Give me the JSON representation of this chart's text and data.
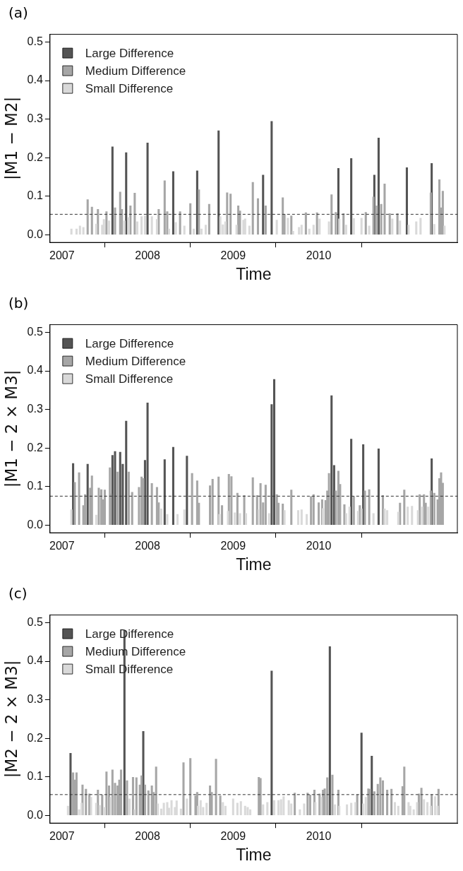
{
  "chart_data": [
    {
      "type": "bar",
      "title": "(a)",
      "xlabel": "Time",
      "ylabel": "|M1 − M2|",
      "xlim": [
        2006.86,
        2011.62
      ],
      "xticks": [
        2007,
        2008,
        2009,
        2010
      ],
      "ylim": [
        -0.02,
        0.52
      ],
      "yticks": [
        {
          "value": 0,
          "label": "0.0"
        },
        {
          "value": 0.1,
          "label": "0.1"
        },
        {
          "value": 0.2,
          "label": "0.2"
        },
        {
          "value": 0.3,
          "label": "0.3"
        },
        {
          "value": 0.4,
          "label": "0.4"
        },
        {
          "value": 0.5,
          "label": "0.5"
        }
      ],
      "grid": false,
      "legend": "top left",
      "ref_lines": [
        {
          "axis": "y",
          "value": 0.053,
          "color": "#333333",
          "line_style": "dashed"
        }
      ],
      "series": [
        {
          "name": "Large Difference",
          "color": "#545454",
          "x": [
            2007.59,
            2007.75,
            2008.0,
            2008.3,
            2008.58,
            2008.83,
            2009.35,
            2009.45,
            2010.23,
            2010.38,
            2010.65,
            2010.7,
            2011.03,
            2011.32
          ],
          "values": [
            0.228,
            0.213,
            0.238,
            0.164,
            0.166,
            0.27,
            0.155,
            0.294,
            0.172,
            0.198,
            0.155,
            0.251,
            0.174,
            0.185
          ]
        },
        {
          "name": "Medium Difference",
          "color": "#a6a6a6",
          "x": [
            2007.3,
            2007.35,
            2007.42,
            2007.52,
            2007.62,
            2007.68,
            2007.7,
            2007.8,
            2007.85,
            2008.13,
            2008.2,
            2008.23,
            2008.38,
            2008.5,
            2008.6,
            2008.72,
            2008.93,
            2008.97,
            2009.06,
            2009.08,
            2009.23,
            2009.29,
            2009.38,
            2009.58,
            2009.6,
            2009.68,
            2009.85,
            2009.98,
            2010.15,
            2010.2,
            2010.29,
            2010.55,
            2010.64,
            2010.68,
            2010.73,
            2010.77,
            2010.83,
            2010.92,
            2011.31,
            2011.41,
            2011.43,
            2011.45
          ],
          "values": [
            0.091,
            0.072,
            0.066,
            0.06,
            0.07,
            0.111,
            0.066,
            0.075,
            0.108,
            0.066,
            0.14,
            0.06,
            0.06,
            0.081,
            0.117,
            0.079,
            0.109,
            0.106,
            0.075,
            0.062,
            0.136,
            0.094,
            0.075,
            0.096,
            0.053,
            0.049,
            0.057,
            0.057,
            0.104,
            0.058,
            0.055,
            0.058,
            0.098,
            0.075,
            0.079,
            0.132,
            0.055,
            0.055,
            0.109,
            0.143,
            0.07,
            0.113
          ]
        },
        {
          "name": "Small Difference",
          "color": "#d9d9d9",
          "x": [
            2007.11,
            2007.17,
            2007.21,
            2007.25,
            2007.4,
            2007.47,
            2007.49,
            2007.55,
            2007.73,
            2007.78,
            2007.88,
            2007.93,
            2007.97,
            2008.05,
            2008.11,
            2008.25,
            2008.33,
            2008.43,
            2008.54,
            2008.63,
            2008.68,
            2008.85,
            2008.88,
            2008.91,
            2009.04,
            2009.12,
            2009.14,
            2009.19,
            2009.51,
            2009.64,
            2009.7,
            2009.77,
            2009.8,
            2009.89,
            2009.94,
            2010.01,
            2010.12,
            2010.24,
            2010.32,
            2010.41,
            2010.5,
            2010.59,
            2010.86,
            2010.95,
            2011.05,
            2011.14,
            2011.19,
            2011.35,
            2011.47
          ],
          "values": [
            0.015,
            0.015,
            0.023,
            0.019,
            0.028,
            0.025,
            0.04,
            0.036,
            0.036,
            0.045,
            0.034,
            0.047,
            0.049,
            0.047,
            0.04,
            0.015,
            0.032,
            0.023,
            0.015,
            0.015,
            0.025,
            0.047,
            0.026,
            0.034,
            0.025,
            0.038,
            0.041,
            0.023,
            0.038,
            0.043,
            0.009,
            0.019,
            0.025,
            0.015,
            0.025,
            0.041,
            0.034,
            0.041,
            0.025,
            0.042,
            0.043,
            0.023,
            0.041,
            0.036,
            0.025,
            0.034,
            0.043,
            0.027,
            0.023
          ]
        }
      ]
    },
    {
      "type": "bar",
      "title": "(b)",
      "xlabel": "Time",
      "ylabel": "|M1 − 2 × M3|",
      "xlim": [
        2006.86,
        2011.62
      ],
      "xticks": [
        2007,
        2008,
        2009,
        2010
      ],
      "ylim": [
        -0.02,
        0.52
      ],
      "yticks": [
        {
          "value": 0,
          "label": "0.0"
        },
        {
          "value": 0.1,
          "label": "0.1"
        },
        {
          "value": 0.2,
          "label": "0.2"
        },
        {
          "value": 0.3,
          "label": "0.3"
        },
        {
          "value": 0.4,
          "label": "0.4"
        },
        {
          "value": 0.5,
          "label": "0.5"
        }
      ],
      "grid": false,
      "legend": "top left",
      "ref_lines": [
        {
          "axis": "y",
          "value": 0.075,
          "color": "#333333",
          "line_style": "dashed"
        }
      ],
      "series": [
        {
          "name": "Large Difference",
          "color": "#545454",
          "x": [
            2007.13,
            2007.3,
            2007.59,
            2007.62,
            2007.68,
            2007.71,
            2007.75,
            2007.97,
            2008.0,
            2008.2,
            2008.3,
            2008.46,
            2009.45,
            2009.48,
            2010.15,
            2010.18,
            2010.38,
            2010.52,
            2010.7,
            2011.32
          ],
          "values": [
            0.16,
            0.158,
            0.181,
            0.191,
            0.189,
            0.158,
            0.27,
            0.168,
            0.317,
            0.17,
            0.202,
            0.179,
            0.313,
            0.378,
            0.336,
            0.155,
            0.223,
            0.209,
            0.198,
            0.172
          ]
        },
        {
          "name": "Medium Difference",
          "color": "#a6a6a6",
          "x": [
            2007.15,
            2007.2,
            2007.25,
            2007.27,
            2007.33,
            2007.35,
            2007.43,
            2007.46,
            2007.48,
            2007.5,
            2007.56,
            2007.57,
            2007.65,
            2007.78,
            2007.82,
            2007.9,
            2007.93,
            2007.95,
            2008.05,
            2008.11,
            2008.13,
            2008.52,
            2008.58,
            2008.6,
            2008.73,
            2008.76,
            2008.83,
            2008.87,
            2008.95,
            2008.98,
            2009.05,
            2009.13,
            2009.23,
            2009.28,
            2009.32,
            2009.35,
            2009.38,
            2009.51,
            2009.53,
            2009.58,
            2009.68,
            2009.91,
            2009.94,
            2010.0,
            2010.04,
            2010.08,
            2010.1,
            2010.12,
            2010.2,
            2010.23,
            2010.25,
            2010.3,
            2010.41,
            2010.48,
            2010.54,
            2010.59,
            2010.75,
            2010.95,
            2011.0,
            2011.18,
            2011.23,
            2011.25,
            2011.31,
            2011.35,
            2011.39,
            2011.41,
            2011.43,
            2011.45
          ],
          "values": [
            0.111,
            0.136,
            0.051,
            0.079,
            0.096,
            0.128,
            0.096,
            0.092,
            0.066,
            0.091,
            0.149,
            0.081,
            0.138,
            0.138,
            0.085,
            0.098,
            0.125,
            0.121,
            0.108,
            0.098,
            0.058,
            0.134,
            0.115,
            0.057,
            0.102,
            0.119,
            0.125,
            0.051,
            0.132,
            0.126,
            0.083,
            0.077,
            0.123,
            0.077,
            0.108,
            0.058,
            0.104,
            0.079,
            0.057,
            0.055,
            0.091,
            0.074,
            0.079,
            0.058,
            0.066,
            0.064,
            0.089,
            0.134,
            0.089,
            0.14,
            0.106,
            0.053,
            0.074,
            0.051,
            0.089,
            0.092,
            0.077,
            0.057,
            0.091,
            0.079,
            0.079,
            0.057,
            0.089,
            0.083,
            0.066,
            0.121,
            0.136,
            0.109
          ]
        },
        {
          "name": "Small Difference",
          "color": "#d9d9d9",
          "x": [
            2007.11,
            2007.4,
            2008.16,
            2008.23,
            2008.35,
            2008.43,
            2008.84,
            2008.94,
            2009.02,
            2009.08,
            2009.15,
            2009.3,
            2009.42,
            2009.6,
            2009.76,
            2009.8,
            2009.86,
            2010.05,
            2010.32,
            2010.36,
            2010.46,
            2010.5,
            2010.64,
            2010.77,
            2010.8,
            2010.93,
            2011.04,
            2011.09,
            2011.16,
            2011.21,
            2011.28
          ],
          "values": [
            0.04,
            0.026,
            0.042,
            0.028,
            0.028,
            0.04,
            0.028,
            0.036,
            0.032,
            0.03,
            0.03,
            0.04,
            0.03,
            0.038,
            0.038,
            0.04,
            0.028,
            0.043,
            0.03,
            0.047,
            0.036,
            0.042,
            0.03,
            0.042,
            0.038,
            0.034,
            0.047,
            0.049,
            0.038,
            0.047,
            0.047
          ]
        }
      ]
    },
    {
      "type": "bar",
      "title": "(c)",
      "xlabel": "Time",
      "ylabel": "|M2 − 2 × M3|",
      "xlim": [
        2006.86,
        2011.62
      ],
      "xticks": [
        2007,
        2008,
        2009,
        2010
      ],
      "ylim": [
        -0.02,
        0.52
      ],
      "yticks": [
        {
          "value": 0,
          "label": "0.0"
        },
        {
          "value": 0.1,
          "label": "0.1"
        },
        {
          "value": 0.2,
          "label": "0.2"
        },
        {
          "value": 0.3,
          "label": "0.3"
        },
        {
          "value": 0.4,
          "label": "0.4"
        },
        {
          "value": 0.5,
          "label": "0.5"
        }
      ],
      "grid": false,
      "legend": "top left",
      "ref_lines": [
        {
          "axis": "y",
          "value": 0.054,
          "color": "#333333",
          "line_style": "dashed"
        }
      ],
      "series": [
        {
          "name": "Large Difference",
          "color": "#545454",
          "x": [
            2007.1,
            2007.73,
            2007.95,
            2009.45,
            2010.13,
            2010.5,
            2010.62
          ],
          "values": [
            0.161,
            0.48,
            0.218,
            0.375,
            0.438,
            0.214,
            0.154
          ]
        },
        {
          "name": "Medium Difference",
          "color": "#a6a6a6",
          "x": [
            2007.13,
            2007.15,
            2007.17,
            2007.24,
            2007.28,
            2007.32,
            2007.42,
            2007.47,
            2007.52,
            2007.55,
            2007.59,
            2007.62,
            2007.65,
            2007.67,
            2007.69,
            2007.76,
            2007.83,
            2007.87,
            2007.91,
            2007.93,
            2007.97,
            2008.01,
            2008.05,
            2008.07,
            2008.1,
            2008.42,
            2008.5,
            2008.56,
            2008.58,
            2008.73,
            2008.75,
            2008.8,
            2008.85,
            2009.3,
            2009.32,
            2009.72,
            2009.87,
            2009.9,
            2009.95,
            2010.01,
            2010.05,
            2010.07,
            2010.1,
            2010.16,
            2010.23,
            2010.45,
            2010.58,
            2010.6,
            2010.65,
            2010.69,
            2010.72,
            2010.75,
            2010.8,
            2010.85,
            2010.98,
            2011.0,
            2011.17,
            2011.2,
            2011.32,
            2011.4
          ],
          "values": [
            0.111,
            0.092,
            0.111,
            0.079,
            0.068,
            0.056,
            0.066,
            0.053,
            0.113,
            0.077,
            0.118,
            0.084,
            0.077,
            0.092,
            0.118,
            0.09,
            0.099,
            0.098,
            0.079,
            0.103,
            0.079,
            0.064,
            0.077,
            0.06,
            0.126,
            0.137,
            0.148,
            0.051,
            0.06,
            0.077,
            0.06,
            0.146,
            0.051,
            0.099,
            0.096,
            0.058,
            0.058,
            0.053,
            0.066,
            0.056,
            0.066,
            0.069,
            0.098,
            0.105,
            0.066,
            0.054,
            0.069,
            0.068,
            0.062,
            0.081,
            0.098,
            0.09,
            0.066,
            0.068,
            0.075,
            0.126,
            0.056,
            0.071,
            0.054,
            0.068
          ]
        },
        {
          "name": "Small Difference",
          "color": "#d9d9d9",
          "x": [
            2007.07,
            2007.2,
            2007.23,
            2007.34,
            2007.4,
            2007.44,
            2007.5,
            2007.57,
            2007.79,
            2007.85,
            2008.12,
            2008.16,
            2008.19,
            2008.23,
            2008.25,
            2008.28,
            2008.32,
            2008.34,
            2008.39,
            2008.46,
            2008.59,
            2008.62,
            2008.65,
            2008.69,
            2008.88,
            2008.91,
            2009.0,
            2009.05,
            2009.09,
            2009.14,
            2009.17,
            2009.2,
            2009.35,
            2009.4,
            2009.48,
            2009.53,
            2009.56,
            2009.59,
            2009.65,
            2009.68,
            2009.78,
            2009.83,
            2009.96,
            2010.03,
            2010.19,
            2010.24,
            2010.33,
            2010.38,
            2010.43,
            2010.52,
            2010.55,
            2010.89,
            2010.93,
            2011.05,
            2011.07,
            2011.11,
            2011.15,
            2011.23,
            2011.27,
            2011.31,
            2011.36,
            2011.39
          ],
          "values": [
            0.024,
            0.015,
            0.032,
            0.047,
            0.032,
            0.026,
            0.021,
            0.047,
            0.043,
            0.015,
            0.03,
            0.017,
            0.032,
            0.034,
            0.019,
            0.039,
            0.021,
            0.038,
            0.017,
            0.043,
            0.024,
            0.039,
            0.021,
            0.032,
            0.034,
            0.024,
            0.043,
            0.032,
            0.036,
            0.024,
            0.021,
            0.015,
            0.028,
            0.034,
            0.039,
            0.039,
            0.041,
            0.049,
            0.039,
            0.03,
            0.015,
            0.03,
            0.034,
            0.047,
            0.028,
            0.024,
            0.028,
            0.032,
            0.034,
            0.03,
            0.047,
            0.034,
            0.024,
            0.034,
            0.024,
            0.015,
            0.034,
            0.041,
            0.034,
            0.024,
            0.049,
            0.024
          ]
        }
      ]
    }
  ]
}
